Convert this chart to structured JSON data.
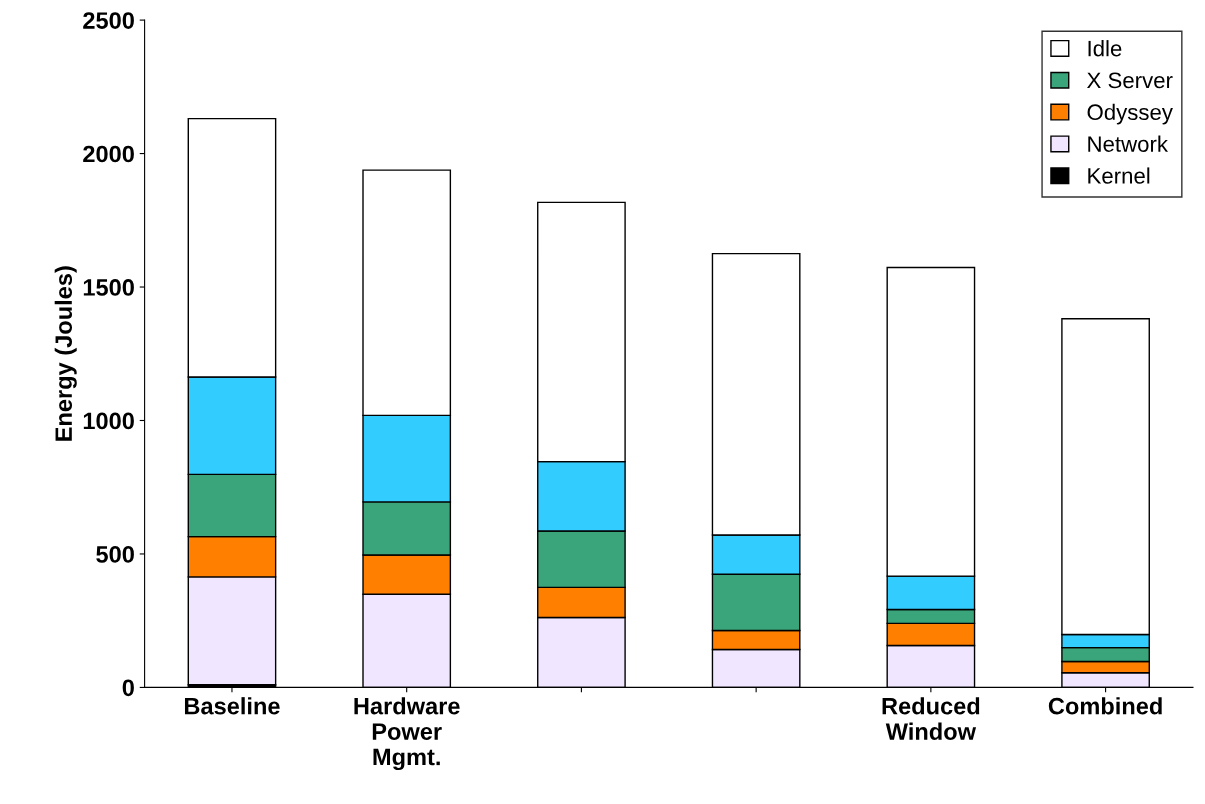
{
  "chart_data": {
    "type": "bar",
    "stacked": true,
    "ylabel": "Energy (Joules)",
    "categories": [
      "Baseline",
      "Hardware\nPower\nMgmt.",
      null,
      null,
      "Reduced\nWindow",
      "Combined"
    ],
    "series": [
      {
        "name": "Kernel",
        "color": "#000000",
        "values": [
          10,
          null,
          null,
          null,
          null,
          null
        ]
      },
      {
        "name": "Network",
        "color": "#f0e6ff",
        "values": [
          404,
          349,
          262,
          142,
          157,
          55
        ]
      },
      {
        "name": "Odyssey",
        "color": "#ff7f00",
        "values": [
          151,
          147,
          113,
          71,
          83,
          42
        ]
      },
      {
        "name": "X Server",
        "color": "#3aa57a",
        "values": [
          233,
          199,
          211,
          211,
          52,
          52
        ]
      },
      {
        "color": "#33ccff",
        "values": [
          365,
          324,
          260,
          147,
          125,
          49
        ]
      },
      {
        "name": "Idle",
        "color": "#ffffff",
        "values": [
          968,
          919,
          971,
          1054,
          1156,
          1183
        ]
      }
    ],
    "ylim": [
      0,
      2500
    ],
    "yticks": [
      0,
      500,
      1000,
      1500,
      2000,
      2500
    ],
    "grid": false,
    "legend": "top right"
  }
}
